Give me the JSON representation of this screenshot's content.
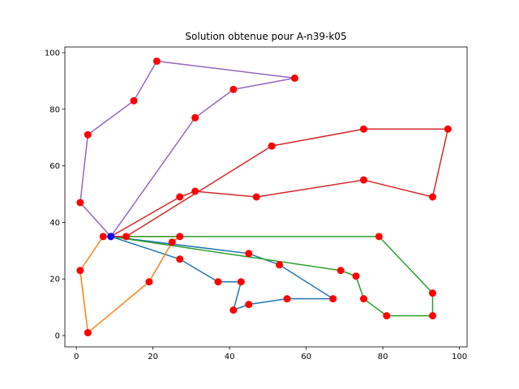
{
  "chart_data": {
    "type": "line",
    "title": "Solution obtenue pour A-n39-k05",
    "xlabel": "",
    "ylabel": "",
    "xlim": [
      -3,
      102
    ],
    "ylim": [
      -4,
      102
    ],
    "xticks": [
      0,
      20,
      40,
      60,
      80,
      100
    ],
    "yticks": [
      0,
      20,
      40,
      60,
      80,
      100
    ],
    "grid": false,
    "depot": {
      "x": 9,
      "y": 35,
      "color": "#0000ff"
    },
    "node_color": "#ff0000",
    "series": [
      {
        "color": "#1f77b4",
        "points": [
          [
            9,
            35
          ],
          [
            27,
            27
          ],
          [
            37,
            19
          ],
          [
            43,
            19
          ],
          [
            41,
            9
          ],
          [
            45,
            11
          ],
          [
            55,
            13
          ],
          [
            67,
            13
          ],
          [
            53,
            25
          ],
          [
            45,
            29
          ],
          [
            9,
            35
          ]
        ]
      },
      {
        "color": "#ff7f0e",
        "points": [
          [
            9,
            35
          ],
          [
            7,
            35
          ],
          [
            1,
            23
          ],
          [
            3,
            1
          ],
          [
            19,
            19
          ],
          [
            25,
            33
          ],
          [
            27,
            35
          ],
          [
            9,
            35
          ]
        ]
      },
      {
        "color": "#2ca02c",
        "points": [
          [
            9,
            35
          ],
          [
            79,
            35
          ],
          [
            93,
            15
          ],
          [
            93,
            7
          ],
          [
            81,
            7
          ],
          [
            75,
            13
          ],
          [
            73,
            21
          ],
          [
            69,
            23
          ],
          [
            9,
            35
          ]
        ]
      },
      {
        "color": "#d62728",
        "points": [
          [
            9,
            35
          ],
          [
            13,
            35
          ],
          [
            51,
            67
          ],
          [
            75,
            73
          ],
          [
            97,
            73
          ],
          [
            93,
            49
          ],
          [
            75,
            55
          ],
          [
            47,
            49
          ],
          [
            31,
            51
          ],
          [
            27,
            49
          ],
          [
            9,
            35
          ]
        ]
      },
      {
        "color": "#9467bd",
        "points": [
          [
            9,
            35
          ],
          [
            31,
            77
          ],
          [
            41,
            87
          ],
          [
            57,
            91
          ],
          [
            21,
            97
          ],
          [
            15,
            83
          ],
          [
            3,
            71
          ],
          [
            1,
            47
          ],
          [
            9,
            35
          ]
        ]
      }
    ]
  }
}
